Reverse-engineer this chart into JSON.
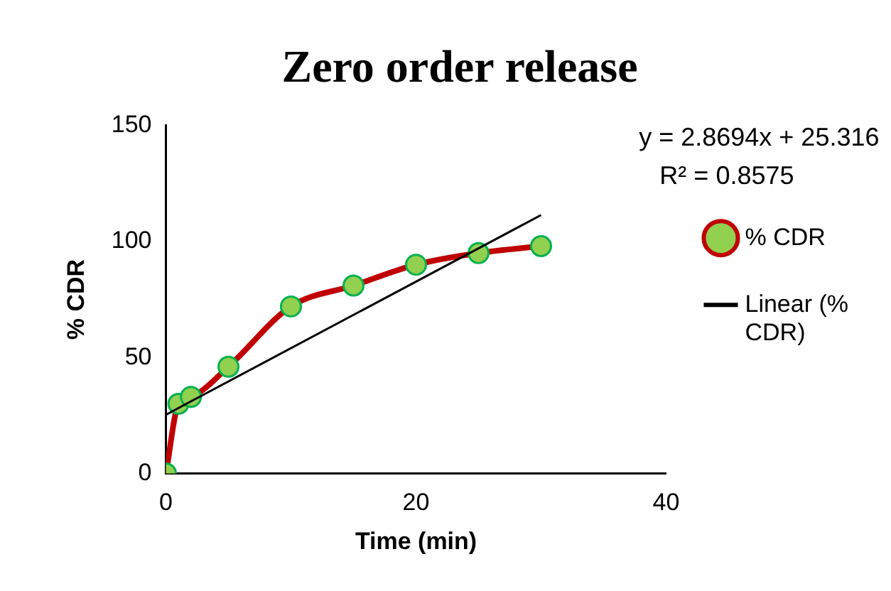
{
  "chart_data": {
    "type": "line",
    "title": "Zero order release",
    "xlabel": "Time (min)",
    "ylabel": "% CDR",
    "xlim": [
      0,
      40
    ],
    "xticks": [
      0,
      20,
      40
    ],
    "ylim": [
      0,
      150
    ],
    "yticks": [
      0,
      50,
      100,
      150
    ],
    "grid": false,
    "legend": "right",
    "marker": "circle",
    "series": [
      {
        "name": "% CDR",
        "color": "#c00000",
        "x": [
          0,
          1,
          2,
          5,
          10,
          15,
          20,
          25,
          30
        ],
        "values": [
          0,
          30,
          33,
          46,
          72,
          81,
          90,
          95,
          98
        ]
      },
      {
        "name": "Linear (% CDR)",
        "color": "#000000",
        "marker": "none",
        "x": [
          0,
          30
        ],
        "values": [
          25.3,
          111.4
        ]
      }
    ],
    "annotations": [
      "y = 2.8694x + 25.316",
      "R² = 0.8575"
    ]
  }
}
